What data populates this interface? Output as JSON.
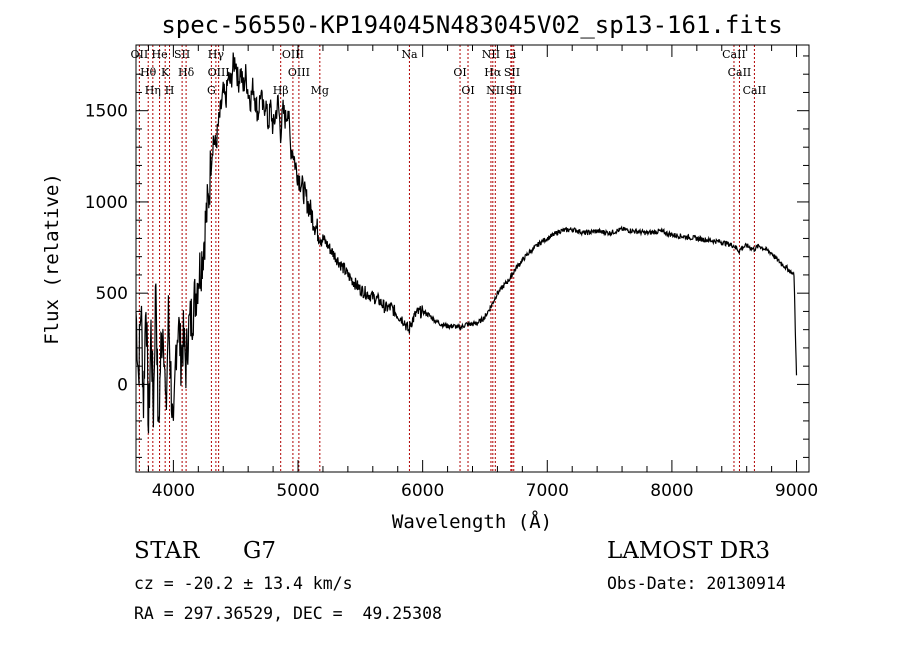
{
  "chart_data": {
    "type": "line",
    "title": "spec-56550-KP194045N483045V02_sp13-161.fits",
    "xlabel": "Wavelength (Å)",
    "ylabel": "Flux (relative)",
    "xlim": [
      3700,
      9100
    ],
    "ylim": [
      -480,
      1860
    ],
    "xticks": [
      4000,
      5000,
      6000,
      7000,
      8000,
      9000
    ],
    "yticks": [
      0,
      500,
      1000,
      1500
    ],
    "grid": false,
    "series": [
      {
        "name": "spectrum",
        "x": [
          3700,
          3720,
          3740,
          3760,
          3780,
          3800,
          3820,
          3840,
          3860,
          3880,
          3900,
          3920,
          3940,
          3960,
          3980,
          4000,
          4020,
          4040,
          4060,
          4080,
          4100,
          4120,
          4140,
          4160,
          4180,
          4200,
          4220,
          4240,
          4260,
          4280,
          4300,
          4320,
          4340,
          4360,
          4380,
          4400,
          4420,
          4440,
          4460,
          4480,
          4500,
          4520,
          4540,
          4560,
          4580,
          4600,
          4620,
          4640,
          4660,
          4680,
          4700,
          4720,
          4740,
          4760,
          4780,
          4800,
          4820,
          4840,
          4860,
          4880,
          4900,
          4920,
          4940,
          4960,
          4980,
          5000,
          5050,
          5100,
          5150,
          5200,
          5250,
          5300,
          5350,
          5400,
          5450,
          5500,
          5550,
          5600,
          5650,
          5700,
          5750,
          5800,
          5850,
          5890,
          5900,
          5950,
          6000,
          6050,
          6100,
          6150,
          6200,
          6250,
          6300,
          6350,
          6400,
          6450,
          6500,
          6550,
          6600,
          6650,
          6700,
          6750,
          6800,
          6850,
          6900,
          6950,
          7000,
          7100,
          7200,
          7300,
          7400,
          7500,
          7600,
          7700,
          7800,
          7900,
          8000,
          8100,
          8200,
          8300,
          8400,
          8500,
          8540,
          8560,
          8600,
          8660,
          8700,
          8800,
          8850,
          8900,
          8950,
          8980,
          8990,
          9000
        ],
        "y": [
          400,
          50,
          450,
          -100,
          500,
          -250,
          300,
          -150,
          600,
          -300,
          200,
          350,
          -200,
          380,
          50,
          -350,
          200,
          350,
          150,
          250,
          100,
          300,
          350,
          420,
          500,
          600,
          650,
          750,
          900,
          1000,
          1200,
          1350,
          1300,
          1420,
          1500,
          1600,
          1550,
          1680,
          1650,
          1750,
          1780,
          1650,
          1720,
          1620,
          1700,
          1600,
          1560,
          1640,
          1550,
          1480,
          1600,
          1500,
          1550,
          1420,
          1520,
          1400,
          1480,
          1550,
          1380,
          1500,
          1450,
          1520,
          1300,
          1280,
          1200,
          1150,
          1050,
          950,
          850,
          800,
          750,
          700,
          650,
          600,
          560,
          520,
          500,
          480,
          460,
          420,
          420,
          380,
          350,
          290,
          330,
          390,
          400,
          380,
          350,
          330,
          320,
          320,
          310,
          330,
          330,
          340,
          370,
          430,
          500,
          540,
          580,
          640,
          680,
          720,
          750,
          780,
          800,
          840,
          850,
          830,
          840,
          830,
          850,
          840,
          830,
          840,
          820,
          810,
          800,
          790,
          780,
          760,
          730,
          750,
          760,
          740,
          760,
          720,
          680,
          650,
          620,
          600,
          300,
          50
        ]
      }
    ],
    "emission_lines": [
      {
        "label": "OII",
        "x": 3727
      },
      {
        "label": "Hθ",
        "x": 3798
      },
      {
        "label": "Hη",
        "x": 3835
      },
      {
        "label": "He",
        "x": 3889
      },
      {
        "label": "K",
        "x": 3934
      },
      {
        "label": "H",
        "x": 3969
      },
      {
        "label": "SII",
        "x": 4070
      },
      {
        "label": "Hδ",
        "x": 4102
      },
      {
        "label": "G",
        "x": 4305
      },
      {
        "label": "Hγ",
        "x": 4341
      },
      {
        "label": "OIII",
        "x": 4363
      },
      {
        "label": "Hβ",
        "x": 4861
      },
      {
        "label": "OIII",
        "x": 4959
      },
      {
        "label": "OIII",
        "x": 5007
      },
      {
        "label": "Mg",
        "x": 5175
      },
      {
        "label": "Na",
        "x": 5894
      },
      {
        "label": "OI",
        "x": 6300
      },
      {
        "label": "OI",
        "x": 6364
      },
      {
        "label": "NII",
        "x": 6548
      },
      {
        "label": "Hα",
        "x": 6563
      },
      {
        "label": "NII",
        "x": 6583
      },
      {
        "label": "Li",
        "x": 6708
      },
      {
        "label": "SII",
        "x": 6717
      },
      {
        "label": "SII",
        "x": 6731
      },
      {
        "label": "CaII",
        "x": 8498
      },
      {
        "label": "CaII",
        "x": 8542
      },
      {
        "label": "CaII",
        "x": 8662
      }
    ]
  },
  "info": {
    "class": "STAR",
    "subclass": "G7",
    "survey": "LAMOST DR3",
    "redshift": "cz = -20.2 ± 13.4 km/s",
    "obs_date": "Obs-Date: 20130914",
    "coords": "RA = 297.36529, DEC =  49.25308"
  }
}
